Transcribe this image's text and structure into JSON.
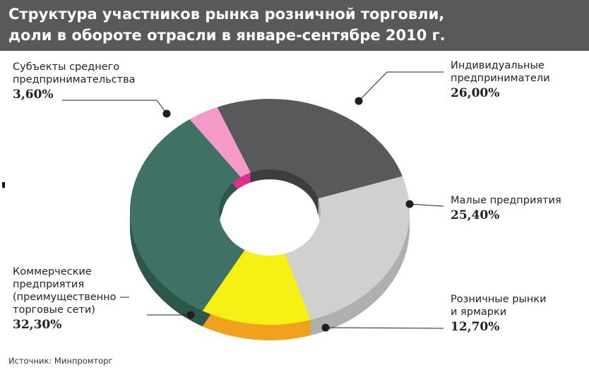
{
  "header": {
    "line1": "Структура участников рынка розничной торговли,",
    "line2": "доли в обороте отрасли в январе-сентябре 2010 г."
  },
  "source": "Источник: Минпромторг",
  "chart_data": {
    "type": "pie",
    "title": "Структура участников рынка розничной торговли, доли в обороте отрасли в январе-сентябре 2010 г.",
    "slices": [
      {
        "label_lines": [
          "Индивидуальные",
          "предприниматели"
        ],
        "value": 26.0,
        "value_text": "26,00%",
        "color": "#58595b",
        "side": "#3d3e40"
      },
      {
        "label_lines": [
          "Малые предприятия"
        ],
        "value": 25.4,
        "value_text": "25,40%",
        "color": "#d1d0ce",
        "side": "#b0afad"
      },
      {
        "label_lines": [
          "Розничные рынки",
          "и ярмарки"
        ],
        "value": 12.7,
        "value_text": "12,70%",
        "color": "#f7f014",
        "side": "#f0a21c"
      },
      {
        "label_lines": [
          "Коммерческие",
          "предприятия",
          "(преимущественно —",
          "торговые сети)"
        ],
        "value": 32.3,
        "value_text": "32,30%",
        "color": "#3f7264",
        "side": "#2e574c"
      },
      {
        "label_lines": [
          "Субъекты среднего",
          "предпринимательства"
        ],
        "value": 3.6,
        "value_text": "3,60%",
        "color": "#f49ac8",
        "side": "#e0308c"
      }
    ],
    "legend": "none"
  }
}
